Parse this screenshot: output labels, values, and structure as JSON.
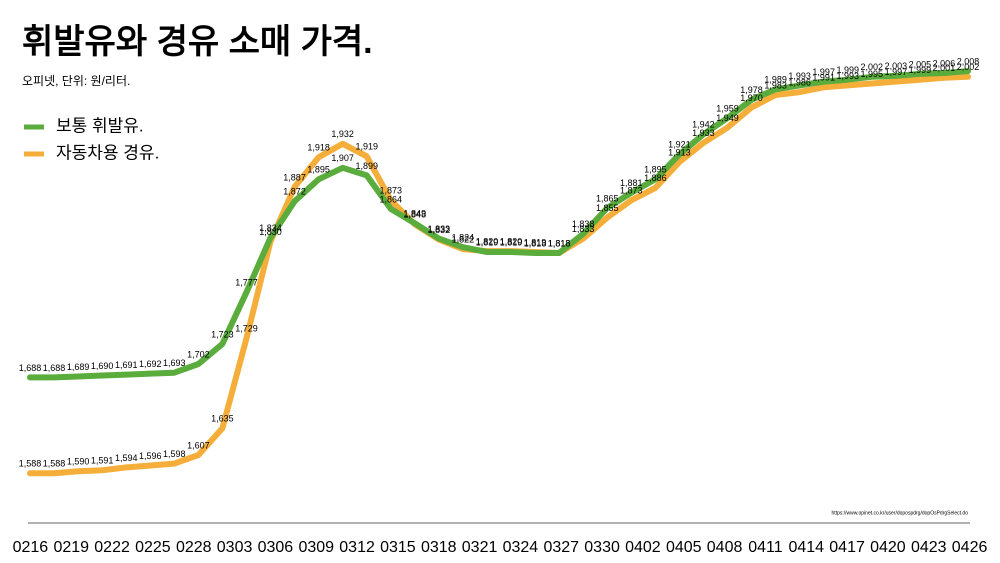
{
  "chart_data": {
    "type": "line",
    "title": "휘발유와 경유 소매 가격.",
    "subtitle": "오피넷, 단위: 원/리터.",
    "source": "https://www.opinet.co.kr/user/dopospdrg/dopOsPdrgSelect.do",
    "x_tick_labels": [
      "0216",
      "0219",
      "0222",
      "0225",
      "0228",
      "0303",
      "0306",
      "0309",
      "0312",
      "0315",
      "0318",
      "0321",
      "0324",
      "0327",
      "0330",
      "0402",
      "0405",
      "0408",
      "0411",
      "0414",
      "0417",
      "0420",
      "0423",
      "0426"
    ],
    "ylim": [
      1560,
      2030
    ],
    "legend": "top-left",
    "series": [
      {
        "name": "보통 휘발유.",
        "color": "#5aac3c",
        "values": [
          1688,
          1688,
          1689,
          1690,
          1691,
          1692,
          1693,
          1702,
          1723,
          1777,
          1834,
          1872,
          1895,
          1907,
          1899,
          1864,
          1849,
          1833,
          1824,
          1819,
          1819,
          1818,
          1818,
          1838,
          1865,
          1881,
          1895,
          1921,
          1942,
          1959,
          1978,
          1989,
          1993,
          1997,
          1999,
          2002,
          2003,
          2005,
          2006,
          2008
        ],
        "value_labels": [
          "1,688",
          "1,688",
          "1,689",
          "1,690",
          "1,691",
          "1,692",
          "1,693",
          "1,702",
          "1,723",
          "1,777",
          "1,834",
          "1,872",
          "1,895",
          "1,907",
          "1,899",
          "1,864",
          "1,849",
          "1,833",
          "1,824",
          "1,819",
          "1,819",
          "1,818",
          "1,818",
          "1,838",
          "1,865",
          "1,881",
          "1,895",
          "1,921",
          "1,942",
          "1,959",
          "1,978",
          "1,989",
          "1,993",
          "1,997",
          "1,999",
          "2,002",
          "2,003",
          "2,005",
          "2,006",
          "2,008"
        ]
      },
      {
        "name": "자동차용 경유.",
        "color": "#f5ae3a",
        "values": [
          1588,
          1588,
          1590,
          1591,
          1594,
          1596,
          1598,
          1607,
          1635,
          1729,
          1830,
          1887,
          1918,
          1932,
          1919,
          1873,
          1848,
          1832,
          1822,
          1820,
          1820,
          1819,
          1818,
          1833,
          1855,
          1873,
          1886,
          1913,
          1933,
          1949,
          1970,
          1983,
          1986,
          1991,
          1993,
          1995,
          1997,
          1999,
          2001,
          2002
        ],
        "value_labels": [
          "1,588",
          "1,588",
          "1,590",
          "1,591",
          "1,594",
          "1,596",
          "1,598",
          "1,607",
          "1,635",
          "1,729",
          "1,830",
          "1,887",
          "1,918",
          "1,932",
          "1,919",
          "1,873",
          "1,848",
          "1,832",
          "1,822",
          "1,820",
          "1,820",
          "1,819",
          "1,818",
          "1,833",
          "1,855",
          "1,873",
          "1,886",
          "1,913",
          "1,933",
          "1,949",
          "1,970",
          "1,983",
          "1,986",
          "1,991",
          "1,993",
          "1,995",
          "1,997",
          "1,999",
          "2,001",
          "2,002"
        ]
      }
    ]
  }
}
